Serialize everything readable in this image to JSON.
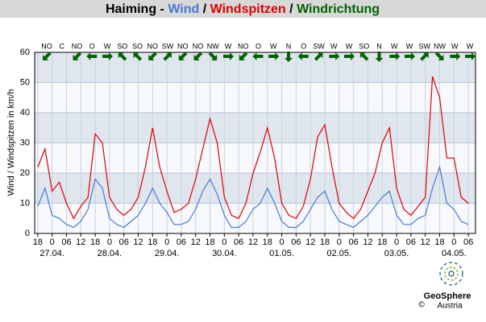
{
  "chart_data": {
    "type": "line",
    "title_prefix": "Haiming -",
    "title_separator": "/",
    "direction_title": "Windrichtung",
    "direction_color": "#006400",
    "y_label": "Wind / Windspitzen in km/h",
    "ylim": [
      0,
      60
    ],
    "yticks": [
      0,
      10,
      20,
      30,
      40,
      50,
      60
    ],
    "xlim": [
      -7.3,
      177
    ],
    "xticks": [
      {
        "value": -6,
        "label": "18"
      },
      {
        "value": 0,
        "label": "0"
      },
      {
        "value": 6,
        "label": "06"
      },
      {
        "value": 12,
        "label": "12"
      },
      {
        "value": 18,
        "label": "18"
      },
      {
        "value": 24,
        "label": "0"
      },
      {
        "value": 30,
        "label": "06"
      },
      {
        "value": 36,
        "label": "12"
      },
      {
        "value": 42,
        "label": "18"
      },
      {
        "value": 48,
        "label": "0"
      },
      {
        "value": 54,
        "label": "06"
      },
      {
        "value": 60,
        "label": "12"
      },
      {
        "value": 66,
        "label": "18"
      },
      {
        "value": 72,
        "label": "0"
      },
      {
        "value": 78,
        "label": "06"
      },
      {
        "value": 84,
        "label": "12"
      },
      {
        "value": 90,
        "label": "18"
      },
      {
        "value": 96,
        "label": "0"
      },
      {
        "value": 102,
        "label": "06"
      },
      {
        "value": 108,
        "label": "12"
      },
      {
        "value": 114,
        "label": "18"
      },
      {
        "value": 120,
        "label": "0"
      },
      {
        "value": 126,
        "label": "06"
      },
      {
        "value": 132,
        "label": "12"
      },
      {
        "value": 138,
        "label": "18"
      },
      {
        "value": 144,
        "label": "0"
      },
      {
        "value": 150,
        "label": "06"
      },
      {
        "value": 156,
        "label": "12"
      },
      {
        "value": 162,
        "label": "18"
      },
      {
        "value": 168,
        "label": "0"
      },
      {
        "value": 174,
        "label": "06"
      }
    ],
    "date_ticks": [
      {
        "value": 0,
        "label": "27.04."
      },
      {
        "value": 24,
        "label": "28.04."
      },
      {
        "value": 48,
        "label": "29.04."
      },
      {
        "value": 72,
        "label": "30.04."
      },
      {
        "value": 96,
        "label": "01.05."
      },
      {
        "value": 120,
        "label": "02.05."
      },
      {
        "value": 144,
        "label": "03.05."
      },
      {
        "value": 168,
        "label": "04.05."
      }
    ],
    "directions": [
      "NO",
      "C",
      "NO",
      "O",
      "W",
      "SO",
      "SO",
      "NO",
      "SW",
      "NO",
      "NO",
      "NW",
      "W",
      "NO",
      "O",
      "W",
      "N",
      "O",
      "SW",
      "W",
      "W",
      "SO",
      "N",
      "W",
      "W",
      "SW",
      "NW",
      "W",
      "W"
    ],
    "grid": true,
    "x": [
      -6,
      -3,
      0,
      3,
      6,
      9,
      12,
      15,
      18,
      21,
      24,
      27,
      30,
      33,
      36,
      39,
      42,
      45,
      48,
      51,
      54,
      57,
      60,
      63,
      66,
      69,
      72,
      75,
      78,
      81,
      84,
      87,
      90,
      93,
      96,
      99,
      102,
      105,
      108,
      111,
      114,
      117,
      120,
      123,
      126,
      129,
      132,
      135,
      138,
      141,
      144,
      147,
      150,
      153,
      156,
      159,
      162,
      165,
      168,
      171,
      174
    ],
    "series": [
      {
        "name": "Wind",
        "color": "#4a78d8",
        "values": [
          9,
          15,
          6,
          5,
          3,
          2,
          4,
          8,
          18,
          15,
          5,
          3,
          2,
          4,
          6,
          10,
          15,
          10,
          7,
          3,
          3,
          4,
          8,
          14,
          18,
          13,
          6,
          2,
          2,
          4,
          8,
          10,
          15,
          10,
          4,
          2,
          2,
          4,
          8,
          12,
          14,
          8,
          4,
          3,
          2,
          4,
          6,
          9,
          12,
          14,
          6,
          3,
          3,
          5,
          6,
          15,
          22,
          10,
          8,
          4,
          3
        ]
      },
      {
        "name": "Windspitzen",
        "color": "#e00000",
        "values": [
          22,
          28,
          14,
          17,
          10,
          5,
          9,
          12,
          33,
          30,
          12,
          8,
          6,
          8,
          12,
          22,
          35,
          22,
          14,
          7,
          8,
          10,
          18,
          28,
          38,
          30,
          12,
          6,
          5,
          10,
          20,
          27,
          35,
          25,
          10,
          6,
          5,
          9,
          18,
          32,
          36,
          22,
          10,
          7,
          5,
          8,
          14,
          20,
          30,
          35,
          15,
          8,
          6,
          9,
          12,
          52,
          45,
          25,
          25,
          12,
          10
        ]
      }
    ]
  },
  "logo": {
    "name": "GeoSphere",
    "sub": "Austria",
    "copyright": "©"
  }
}
